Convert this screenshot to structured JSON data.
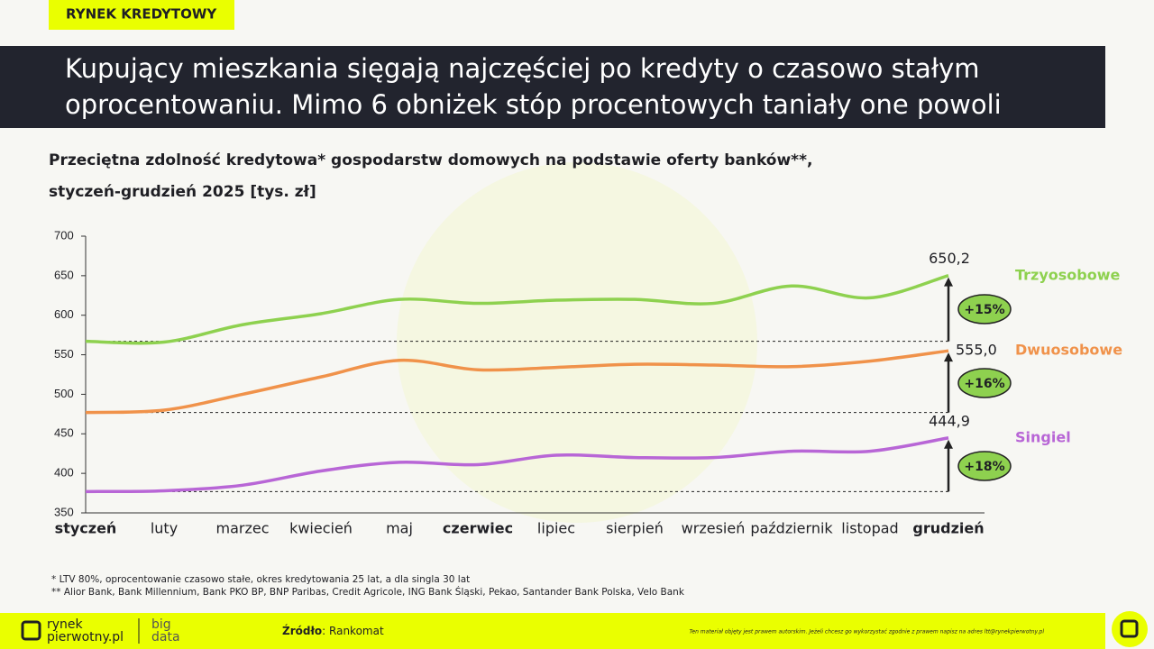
{
  "header": {
    "tag": "RYNEK KREDYTOWY",
    "title_lines": [
      "Kupujący mieszkania sięgają najczęściej po kredyty o czasowo stałym",
      "oprocentowaniu. Mimo 6 obniżek stóp procentowych taniały one powoli"
    ]
  },
  "chart_data": {
    "type": "line",
    "title_lines": [
      "Przeciętna zdolność kredytowa* gospodarstw domowych na podstawie oferty banków**,",
      "styczeń-grudzień 2025 [tys. zł]"
    ],
    "categories": [
      "styczeń",
      "luty",
      "marzec",
      "kwiecień",
      "maj",
      "czerwiec",
      "lipiec",
      "sierpień",
      "wrzesień",
      "październik",
      "listopad",
      "grudzień"
    ],
    "series": [
      {
        "name": "Trzyosobowe",
        "color": "#8ed14f",
        "values": [
          567,
          566,
          588,
          602,
          620,
          615,
          619,
          620,
          615,
          637,
          622,
          650.2
        ],
        "value_labels": [
          null,
          null,
          null,
          null,
          null,
          null,
          null,
          null,
          null,
          null,
          null,
          "650,2"
        ],
        "change": "+15%"
      },
      {
        "name": "Dwuosobowe",
        "color": "#f0924a",
        "values": [
          477,
          480,
          500,
          522,
          543,
          531,
          534,
          538,
          537,
          535,
          542,
          555.0
        ],
        "value_labels": [
          null,
          null,
          null,
          null,
          null,
          null,
          null,
          null,
          null,
          null,
          null,
          "555,0"
        ],
        "change": "+16%"
      },
      {
        "name": "Singiel",
        "color": "#b866d6",
        "values": [
          377,
          378,
          385,
          403,
          414,
          411,
          423,
          420,
          420,
          428,
          428,
          444.9
        ],
        "value_labels": [
          null,
          null,
          null,
          null,
          null,
          null,
          null,
          null,
          null,
          null,
          null,
          "444,9"
        ],
        "change": "+18%"
      }
    ],
    "ylim": [
      350,
      700
    ],
    "yticks": [
      350,
      400,
      450,
      500,
      550,
      600,
      650,
      700
    ]
  },
  "footnotes": [
    "* LTV 80%, oprocentowanie czasowo stałe, okres kredytowania 25 lat, a dla singla 30 lat",
    "** Alior Bank, Bank Millennium, Bank PKO BP, BNP Paribas, Credit Agricole, ING Bank Śląski, Pekao, Santander Bank Polska, Velo Bank"
  ],
  "footer": {
    "logo_lines": [
      "rynek",
      "pierwotny.pl"
    ],
    "brand_lines": [
      "big",
      "data"
    ],
    "source_label": "Źródło",
    "source": ": Rankomat",
    "copyright": "Ten materiał objęty jest prawem autorskim. Jeżeli chcesz go wykorzystać zgodnie z prawem napisz na adres ltt@rynekpierwotny.pl"
  }
}
